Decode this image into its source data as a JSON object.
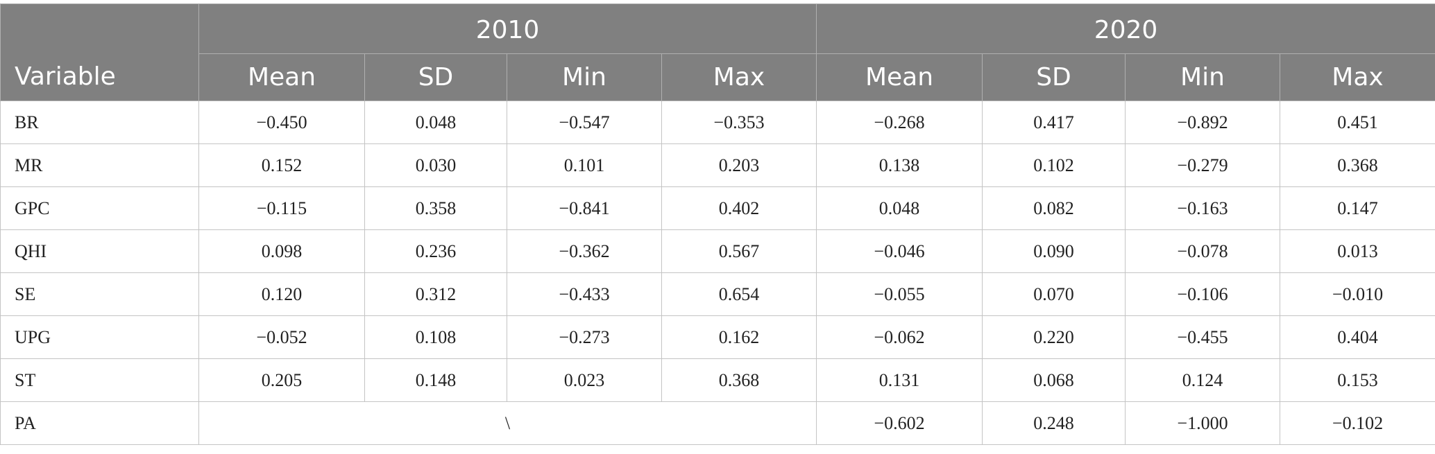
{
  "header": {
    "variable": "Variable",
    "year_2010": "2010",
    "year_2020": "2020",
    "cols_2010": [
      "Mean",
      "SD",
      "Min",
      "Max"
    ],
    "cols_2020": [
      "Mean",
      "SD",
      "Min",
      "Max"
    ]
  },
  "rows": [
    {
      "label": "BR",
      "v2010": [
        "−0.450",
        "0.048",
        "−0.547",
        "−0.353"
      ],
      "v2020": [
        "−0.268",
        "0.417",
        "−0.892",
        "0.451"
      ]
    },
    {
      "label": "MR",
      "v2010": [
        "0.152",
        "0.030",
        "0.101",
        "0.203"
      ],
      "v2020": [
        "0.138",
        "0.102",
        "−0.279",
        "0.368"
      ]
    },
    {
      "label": "GPC",
      "v2010": [
        "−0.115",
        "0.358",
        "−0.841",
        "0.402"
      ],
      "v2020": [
        "0.048",
        "0.082",
        "−0.163",
        "0.147"
      ]
    },
    {
      "label": "QHI",
      "v2010": [
        "0.098",
        "0.236",
        "−0.362",
        "0.567"
      ],
      "v2020": [
        "−0.046",
        "0.090",
        "−0.078",
        "0.013"
      ]
    },
    {
      "label": "SE",
      "v2010": [
        "0.120",
        "0.312",
        "−0.433",
        "0.654"
      ],
      "v2020": [
        "−0.055",
        "0.070",
        "−0.106",
        "−0.010"
      ]
    },
    {
      "label": "UPG",
      "v2010": [
        "−0.052",
        "0.108",
        "−0.273",
        "0.162"
      ],
      "v2020": [
        "−0.062",
        "0.220",
        "−0.455",
        "0.404"
      ]
    },
    {
      "label": "ST",
      "v2010": [
        "0.205",
        "0.148",
        "0.023",
        "0.368"
      ],
      "v2020": [
        "0.131",
        "0.068",
        "0.124",
        "0.153"
      ]
    }
  ],
  "last_row": {
    "label": "PA",
    "v2010_merged": "\\",
    "v2020": [
      "−0.602",
      "0.248",
      "−1.000",
      "−0.102"
    ]
  }
}
